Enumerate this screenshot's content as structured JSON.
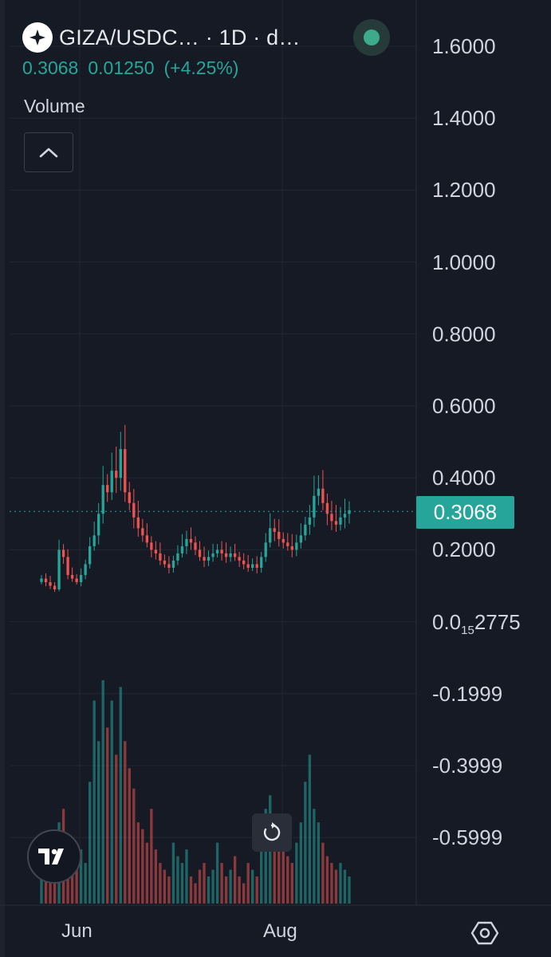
{
  "header": {
    "title": "GIZA/USDC…  · 1D · d…",
    "last_price": "0.3068",
    "change": "0.01250",
    "change_pct": "(+4.25%)"
  },
  "indicator_label": "Volume",
  "price_tag": "0.3068",
  "time_labels": [
    "Jun",
    "Aug"
  ],
  "colors": {
    "up": "#26a69a",
    "down": "#ef5350",
    "bg": "#161a25"
  },
  "icons": [
    "diamond-logo-icon",
    "chevron-up-icon",
    "status-dot-icon",
    "reset-icon",
    "tradingview-logo-icon",
    "settings-icon"
  ],
  "chart_data": {
    "type": "candlestick",
    "title": "GIZA/USDC 1D",
    "y_axis_ticks": [
      "1.6000",
      "1.4000",
      "1.2000",
      "1.0000",
      "0.8000",
      "0.6000",
      "0.4000",
      "0.2000",
      "0.0₁₅2775",
      "-0.1999",
      "-0.3999",
      "-0.5999"
    ],
    "ylim": [
      -0.5999,
      1.6
    ],
    "last_price": 0.3068,
    "series": [
      {
        "name": "price",
        "values": [
          0.12,
          0.11,
          0.1,
          0.09,
          0.2,
          0.18,
          0.13,
          0.12,
          0.11,
          0.13,
          0.16,
          0.21,
          0.24,
          0.3,
          0.38,
          0.36,
          0.42,
          0.4,
          0.48,
          0.36,
          0.33,
          0.29,
          0.26,
          0.24,
          0.22,
          0.2,
          0.19,
          0.17,
          0.16,
          0.15,
          0.17,
          0.19,
          0.21,
          0.23,
          0.22,
          0.2,
          0.18,
          0.17,
          0.18,
          0.19,
          0.2,
          0.19,
          0.18,
          0.19,
          0.18,
          0.17,
          0.16,
          0.15,
          0.16,
          0.15,
          0.18,
          0.22,
          0.26,
          0.25,
          0.23,
          0.22,
          0.21,
          0.2,
          0.22,
          0.24,
          0.27,
          0.29,
          0.35,
          0.37,
          0.33,
          0.3,
          0.28,
          0.27,
          0.29,
          0.3,
          0.31
        ]
      },
      {
        "name": "Volume",
        "values": [
          40,
          45,
          30,
          35,
          60,
          70,
          45,
          25,
          30,
          40,
          30,
          90,
          150,
          120,
          165,
          130,
          150,
          110,
          160,
          120,
          100,
          85,
          60,
          55,
          45,
          70,
          40,
          30,
          25,
          20,
          45,
          35,
          30,
          40,
          20,
          15,
          25,
          30,
          20,
          25,
          45,
          30,
          20,
          25,
          35,
          20,
          15,
          30,
          25,
          20,
          50,
          70,
          80,
          60,
          45,
          40,
          35,
          30,
          45,
          60,
          90,
          110,
          70,
          60,
          45,
          35,
          30,
          25,
          30,
          25,
          20
        ]
      }
    ]
  }
}
